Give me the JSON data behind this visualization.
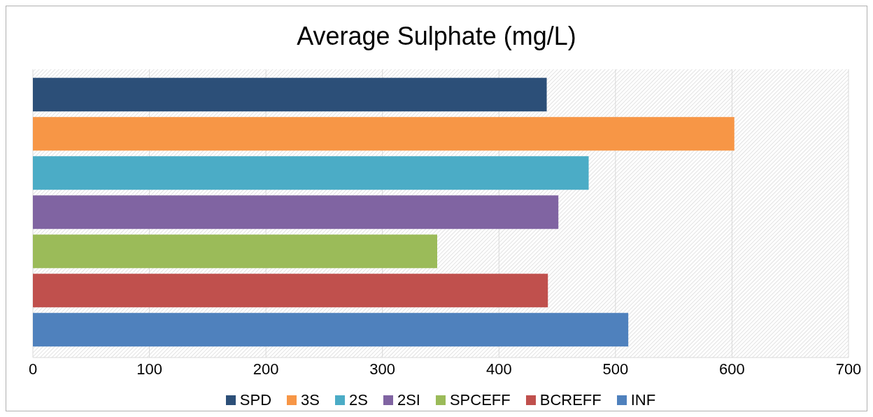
{
  "chart_data": {
    "type": "bar",
    "orientation": "horizontal",
    "title": "Average Sulphate (mg/L)",
    "categories": [
      null
    ],
    "series": [
      {
        "name": "SPD",
        "color": "#2c4f78",
        "values": [
          441
        ]
      },
      {
        "name": "3S",
        "color": "#f79646",
        "values": [
          602
        ]
      },
      {
        "name": "2S",
        "color": "#4bacc6",
        "values": [
          477
        ]
      },
      {
        "name": "2SI",
        "color": "#8064a2",
        "values": [
          451
        ]
      },
      {
        "name": "SPCEFF",
        "color": "#9bbb59",
        "values": [
          347
        ]
      },
      {
        "name": "BCREFF",
        "color": "#c0504d",
        "values": [
          442
        ]
      },
      {
        "name": "INF",
        "color": "#4f81bd",
        "values": [
          511
        ]
      }
    ],
    "xlim": [
      0,
      700
    ],
    "xticks": [
      0,
      100,
      200,
      300,
      400,
      500,
      600,
      700
    ],
    "grid": "x",
    "legend": "bottom"
  }
}
